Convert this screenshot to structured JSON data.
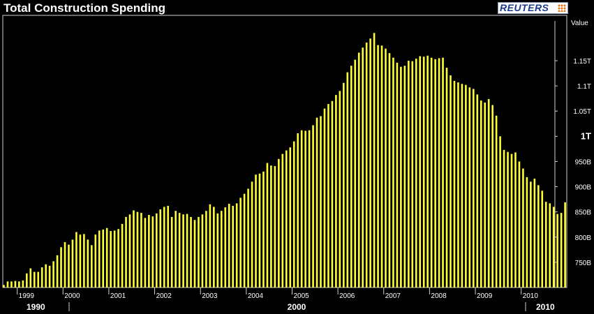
{
  "title": "Total Construction Spending",
  "logo": "REUTERS",
  "colors": {
    "background": "#000000",
    "bar": "#ffff33",
    "text": "#ffffff"
  },
  "chart_data": {
    "type": "bar",
    "title": "Total Construction Spending",
    "ylabel": "Value",
    "ylim": [
      700000000000,
      1240000000000
    ],
    "yticks": [
      {
        "value": 750000000000,
        "label": "750B"
      },
      {
        "value": 800000000000,
        "label": "800B"
      },
      {
        "value": 850000000000,
        "label": "850B"
      },
      {
        "value": 900000000000,
        "label": "900B"
      },
      {
        "value": 950000000000,
        "label": "950B"
      },
      {
        "value": 1000000000000,
        "label": "1T"
      },
      {
        "value": 1050000000000,
        "label": "1.05T"
      },
      {
        "value": 1100000000000,
        "label": "1.1T"
      },
      {
        "value": 1150000000000,
        "label": "1.15T"
      }
    ],
    "year_labels": [
      "1999",
      "2000",
      "2001",
      "2002",
      "2003",
      "2004",
      "2005",
      "2006",
      "2007",
      "2008",
      "2009",
      "2010"
    ],
    "decade_labels": [
      "1990",
      "2000",
      "2010"
    ],
    "x_start": "1998-09",
    "series": [
      {
        "values": [
          705,
          712,
          712,
          713,
          712,
          714,
          728,
          738,
          731,
          731,
          740,
          746,
          743,
          752,
          764,
          780,
          790,
          785,
          795,
          810,
          805,
          806,
          795,
          784,
          805,
          813,
          815,
          818,
          812,
          813,
          816,
          826,
          840,
          845,
          853,
          850,
          848,
          838,
          844,
          841,
          847,
          855,
          860,
          862,
          840,
          852,
          848,
          845,
          846,
          840,
          834,
          840,
          845,
          852,
          865,
          860,
          847,
          852,
          859,
          866,
          862,
          867,
          878,
          886,
          896,
          910,
          924,
          926,
          930,
          947,
          942,
          941,
          955,
          965,
          972,
          978,
          990,
          1006,
          1012,
          1011,
          1012,
          1022,
          1037,
          1040,
          1055,
          1064,
          1070,
          1082,
          1090,
          1106,
          1127,
          1140,
          1152,
          1166,
          1176,
          1186,
          1194,
          1205,
          1181,
          1180,
          1174,
          1165,
          1156,
          1146,
          1138,
          1140,
          1150,
          1149,
          1154,
          1159,
          1158,
          1160,
          1156,
          1153,
          1155,
          1156,
          1136,
          1121,
          1110,
          1107,
          1104,
          1102,
          1097,
          1094,
          1083,
          1071,
          1067,
          1074,
          1062,
          1041,
          1000,
          973,
          969,
          965,
          968,
          950,
          936,
          919,
          910,
          916,
          903,
          892,
          870,
          867,
          860,
          846,
          848,
          869
        ]
      }
    ]
  }
}
